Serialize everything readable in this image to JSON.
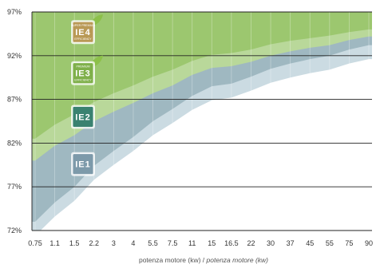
{
  "chart_data": {
    "type": "area",
    "title": "",
    "xlabel_plain": "potenza motore (kw) / ",
    "xlabel_italic": "potenza motore (kw)",
    "ylabel": "",
    "x_categories": [
      "0.75",
      "1.1",
      "1.5",
      "2.2",
      "3",
      "4",
      "5.5",
      "7.5",
      "11",
      "15",
      "16.5",
      "22",
      "30",
      "37",
      "45",
      "55",
      "75",
      "90"
    ],
    "y_ticks": [
      "72%",
      "77%",
      "82%",
      "87%",
      "92%",
      "97%"
    ],
    "ylim": [
      72,
      97
    ],
    "grid": "horizontal",
    "bands": [
      {
        "name": "IE4",
        "color": "#9cc76f",
        "upper": [
          97,
          97,
          97,
          97,
          97,
          97,
          97,
          97,
          97,
          97,
          97,
          97,
          97,
          97,
          97,
          97,
          97,
          97
        ]
      },
      {
        "name": "IE3",
        "color": "#b9d89a",
        "upper": [
          82.5,
          84.1,
          85.3,
          86.7,
          87.7,
          88.6,
          89.6,
          90.4,
          91.4,
          92.1,
          92.3,
          92.7,
          93.3,
          93.7,
          94.0,
          94.3,
          94.7,
          95.0
        ]
      },
      {
        "name": "IE2",
        "color": "#9fb8c1",
        "upper": [
          80.0,
          81.7,
          82.9,
          84.5,
          85.6,
          86.6,
          87.7,
          88.6,
          89.8,
          90.6,
          90.8,
          91.3,
          92.0,
          92.5,
          92.9,
          93.2,
          93.8,
          94.2
        ]
      },
      {
        "name": "IE1",
        "color": "#cbdbe2",
        "upper": [
          73.0,
          75.2,
          77.0,
          79.4,
          81.1,
          82.7,
          84.5,
          85.9,
          87.4,
          88.5,
          88.8,
          89.6,
          90.5,
          91.1,
          91.6,
          92.0,
          92.7,
          93.2
        ]
      }
    ],
    "badges": [
      {
        "label": "IE4",
        "top": "SUPER PREMIUM",
        "bottom": "EFFICIENCY",
        "color": "#b99955",
        "y": 94.7
      },
      {
        "label": "IE3",
        "top": "PREMIUM",
        "bottom": "EFFICIENCY",
        "color": "#7fb04a",
        "y": 90.0
      },
      {
        "label": "IE2",
        "top": "",
        "bottom": "",
        "color": "#3a8270",
        "y": 85.0
      },
      {
        "label": "IE1",
        "top": "",
        "bottom": "",
        "color": "#7d9aaa",
        "y": 79.6
      }
    ]
  }
}
